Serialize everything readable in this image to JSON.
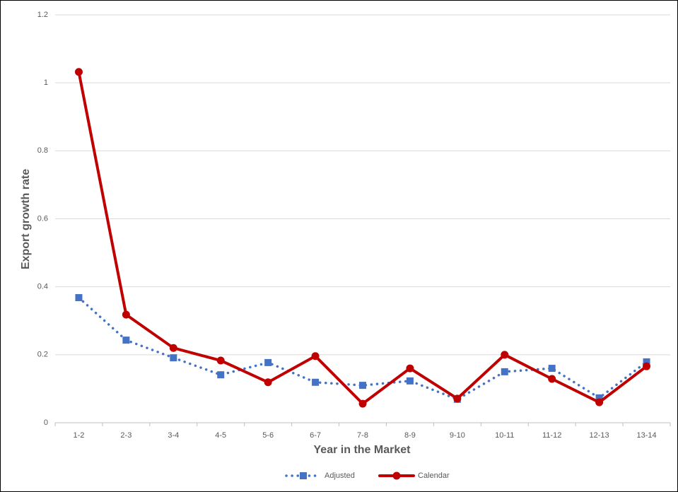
{
  "chart_data": {
    "type": "line",
    "xlabel": "Year in the Market",
    "ylabel": "Export growth rate",
    "categories": [
      "1-2",
      "2-3",
      "3-4",
      "4-5",
      "5-6",
      "6-7",
      "7-8",
      "8-9",
      "9-10",
      "10-11",
      "11-12",
      "12-13",
      "13-14"
    ],
    "series": [
      {
        "name": "Adjusted",
        "color": "#4472c4",
        "dash": "dotted",
        "marker": "square",
        "values": [
          0.368,
          0.243,
          0.191,
          0.141,
          0.177,
          0.119,
          0.11,
          0.123,
          0.069,
          0.15,
          0.16,
          0.073,
          0.179
        ]
      },
      {
        "name": "Calendar",
        "color": "#c00000",
        "dash": "solid",
        "marker": "circle",
        "values": [
          1.032,
          0.318,
          0.22,
          0.183,
          0.119,
          0.196,
          0.056,
          0.16,
          0.071,
          0.2,
          0.129,
          0.06,
          0.166
        ]
      }
    ],
    "ylim": [
      0,
      1.2
    ],
    "yticks": [
      0,
      0.2,
      0.4,
      0.6,
      0.8,
      1,
      1.2
    ],
    "grid": true,
    "legend": "bottom"
  }
}
